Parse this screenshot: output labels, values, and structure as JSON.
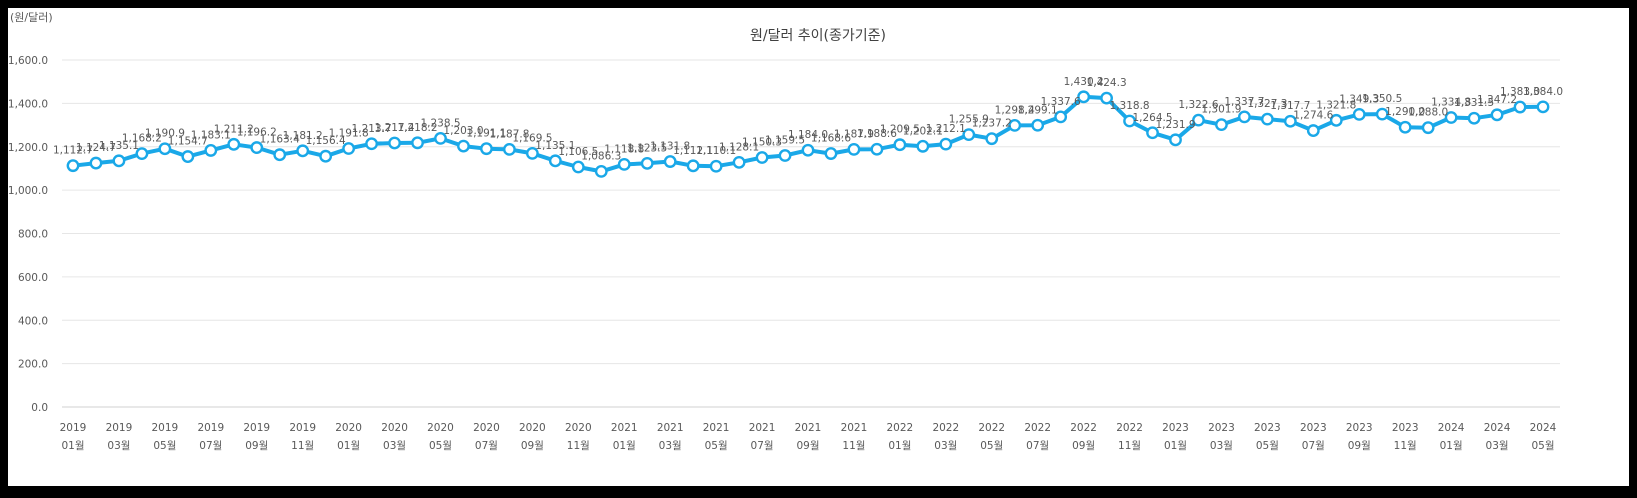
{
  "unit_label": "(원/달러)",
  "chart_data": {
    "type": "line",
    "title": "원/달러 추이(종가기준)",
    "ylim": [
      0,
      1600
    ],
    "yticks": [
      "0.0",
      "200.0",
      "400.0",
      "600.0",
      "800.0",
      "1,000.0",
      "1,200.0",
      "1,400.0",
      "1,600.0"
    ],
    "grid": true,
    "line_color": "#1aa8e8",
    "x": [
      "2019 01월",
      "2019 02월",
      "2019 03월",
      "2019 04월",
      "2019 05월",
      "2019 06월",
      "2019 07월",
      "2019 08월",
      "2019 09월",
      "2019 10월",
      "2019 11월",
      "2019 12월",
      "2020 01월",
      "2020 02월",
      "2020 03월",
      "2020 04월",
      "2020 05월",
      "2020 06월",
      "2020 07월",
      "2020 08월",
      "2020 09월",
      "2020 10월",
      "2020 11월",
      "2020 12월",
      "2021 01월",
      "2021 02월",
      "2021 03월",
      "2021 04월",
      "2021 05월",
      "2021 06월",
      "2021 07월",
      "2021 08월",
      "2021 09월",
      "2021 10월",
      "2021 11월",
      "2021 12월",
      "2022 01월",
      "2022 02월",
      "2022 03월",
      "2022 04월",
      "2022 05월",
      "2022 06월",
      "2022 07월",
      "2022 08월",
      "2022 09월",
      "2022 10월",
      "2022 11월",
      "2022 12월",
      "2023 01월",
      "2023 02월",
      "2023 03월",
      "2023 04월",
      "2023 05월",
      "2023 06월",
      "2023 07월",
      "2023 08월",
      "2023 09월",
      "2023 10월",
      "2023 11월",
      "2023 12월",
      "2024 01월",
      "2024 02월",
      "2024 03월",
      "2024 04월",
      "2024 05월"
    ],
    "xtick_labels": [
      [
        "2019",
        "01월"
      ],
      [
        "2019",
        "03월"
      ],
      [
        "2019",
        "05월"
      ],
      [
        "2019",
        "07월"
      ],
      [
        "2019",
        "09월"
      ],
      [
        "2019",
        "11월"
      ],
      [
        "2020",
        "01월"
      ],
      [
        "2020",
        "03월"
      ],
      [
        "2020",
        "05월"
      ],
      [
        "2020",
        "07월"
      ],
      [
        "2020",
        "09월"
      ],
      [
        "2020",
        "11월"
      ],
      [
        "2021",
        "01월"
      ],
      [
        "2021",
        "03월"
      ],
      [
        "2021",
        "05월"
      ],
      [
        "2021",
        "07월"
      ],
      [
        "2021",
        "09월"
      ],
      [
        "2021",
        "11월"
      ],
      [
        "2022",
        "01월"
      ],
      [
        "2022",
        "03월"
      ],
      [
        "2022",
        "05월"
      ],
      [
        "2022",
        "07월"
      ],
      [
        "2022",
        "09월"
      ],
      [
        "2022",
        "11월"
      ],
      [
        "2023",
        "01월"
      ],
      [
        "2023",
        "03월"
      ],
      [
        "2023",
        "05월"
      ],
      [
        "2023",
        "07월"
      ],
      [
        "2023",
        "09월"
      ],
      [
        "2023",
        "11월"
      ],
      [
        "2024",
        "01월"
      ],
      [
        "2024",
        "03월"
      ],
      [
        "2024",
        "05월"
      ]
    ],
    "values": [
      1112.7,
      1124.7,
      1135.1,
      1168.2,
      1190.9,
      1154.7,
      1183.1,
      1211.2,
      1196.2,
      1163.4,
      1181.2,
      1156.4,
      1191.8,
      1213.7,
      1217.4,
      1218.2,
      1238.5,
      1203.0,
      1191.1,
      1187.8,
      1169.5,
      1135.1,
      1106.5,
      1086.3,
      1118.8,
      1123.5,
      1131.8,
      1112.1,
      1110.1,
      1128.1,
      1150.3,
      1159.5,
      1184.0,
      1168.6,
      1187.9,
      1188.6,
      1209.5,
      1202.1,
      1212.1,
      1255.9,
      1237.2,
      1298.4,
      1299.1,
      1337.6,
      1430.2,
      1424.3,
      1318.8,
      1264.5,
      1231.9,
      1322.6,
      1301.9,
      1337.7,
      1327.3,
      1317.7,
      1274.6,
      1321.8,
      1349.3,
      1350.5,
      1290.0,
      1288.0,
      1334.8,
      1331.5,
      1347.2,
      1383.0,
      1384.0
    ],
    "data_labels": [
      "1,112.7",
      "1,124.7",
      "1,135.1",
      "1,168.2",
      "1,190.9",
      "1,154.7",
      "1,183.1",
      "1,211.2",
      "1,196.2",
      "1,163.4",
      "1,181.2",
      "1,156.4",
      "1,191.8",
      "1,213.7",
      "1,217.4",
      "1,218.2",
      "1,238.5",
      "1,203.0",
      "1,191.1",
      "1,187.8",
      "1,169.5",
      "1,135.1",
      "1,106.5",
      "1,086.3",
      "1,118.8",
      "1,123.5",
      "1,131.8",
      "1,112.1",
      "1,110.1",
      "1,128.1",
      "1,150.3",
      "1,159.5",
      "1,184.0",
      "1,168.6",
      "1,187.9",
      "1,188.6",
      "1,209.5",
      "1,202.1",
      "1,212.1",
      "1,255.9",
      "1,237.2",
      "1,298.4",
      "1,299.1",
      "1,337.6",
      "1,430.2",
      "1,424.3",
      "1,318.8",
      "1,264.5",
      "1,231.9",
      "1,322.6",
      "1,301.9",
      "1,337.7",
      "1,327.3",
      "1,317.7",
      "1,274.6",
      "1,321.8",
      "1,349.3",
      "1,350.5",
      "1,290.0",
      "1,288.0",
      "1,334.8",
      "1,331.5",
      "1,347.2",
      "1,383.0",
      "1,384.0"
    ]
  }
}
